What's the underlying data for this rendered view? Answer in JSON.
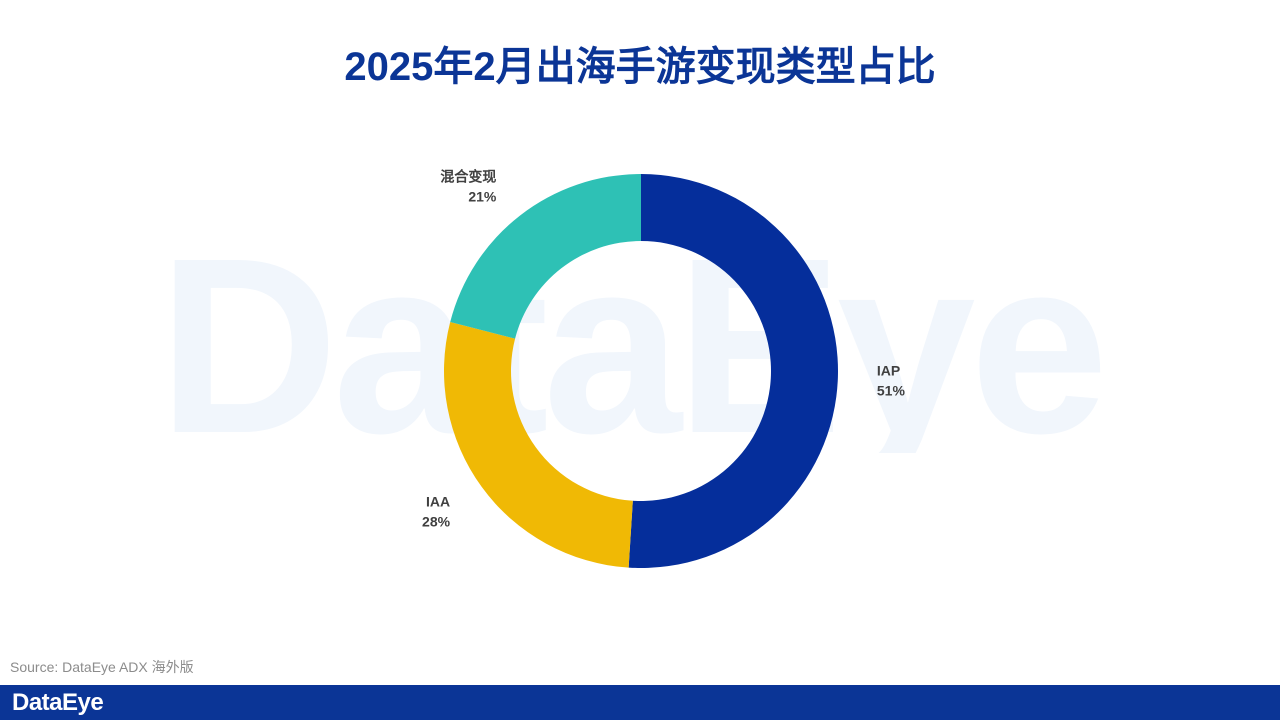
{
  "title": "2025年2月出海手游变现类型占比",
  "watermark": "DataEye",
  "source": "Source: DataEye ADX 海外版",
  "footer": {
    "logo_text": "DataEye",
    "bar_color": "#0b3596"
  },
  "chart_data": {
    "type": "pie",
    "variant": "donut",
    "title": "2025年2月出海手游变现类型占比",
    "slices": [
      {
        "label": "IAP",
        "value": 51,
        "value_label": "51%",
        "color": "#052e9b"
      },
      {
        "label": "IAA",
        "value": 28,
        "value_label": "28%",
        "color": "#f0b905"
      },
      {
        "label": "混合变现",
        "value": 21,
        "value_label": "21%",
        "color": "#2ec1b5"
      }
    ],
    "start_angle": "12 o'clock",
    "direction": "clockwise"
  }
}
